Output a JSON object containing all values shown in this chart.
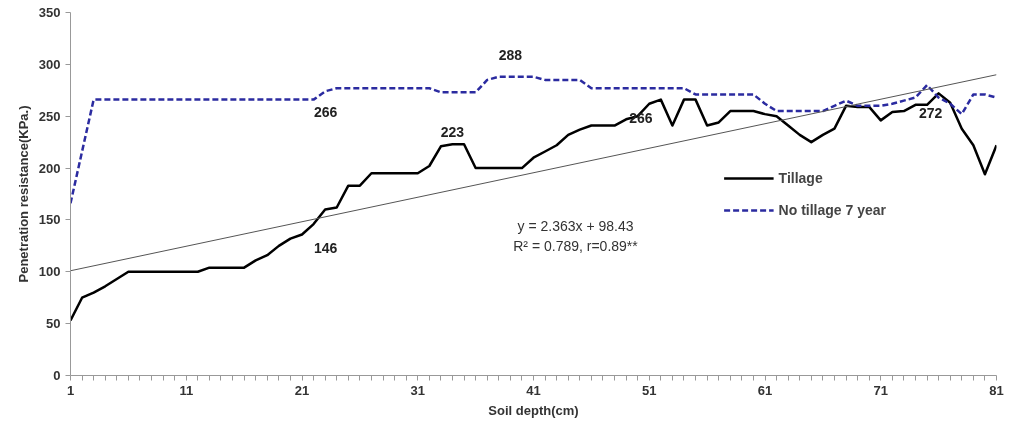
{
  "chart_data": {
    "type": "line",
    "xlabel": "Soil depth(cm)",
    "ylabel": "Penetration resistance(KPa.)",
    "xlim": [
      1,
      81
    ],
    "ylim": [
      0,
      350
    ],
    "xticks": [
      1,
      {
        "value": 2,
        "label": null
      },
      {
        "value": 3,
        "label": null
      },
      {
        "value": 4,
        "label": null
      },
      {
        "value": 5,
        "label": null
      },
      {
        "value": 6,
        "label": null
      },
      {
        "value": 7,
        "label": null
      },
      {
        "value": 8,
        "label": null
      },
      {
        "value": 9,
        "label": null
      },
      {
        "value": 10,
        "label": null
      },
      11,
      {
        "value": 12,
        "label": null
      },
      {
        "value": 13,
        "label": null
      },
      {
        "value": 14,
        "label": null
      },
      {
        "value": 15,
        "label": null
      },
      {
        "value": 16,
        "label": null
      },
      {
        "value": 17,
        "label": null
      },
      {
        "value": 18,
        "label": null
      },
      {
        "value": 19,
        "label": null
      },
      {
        "value": 20,
        "label": null
      },
      21,
      {
        "value": 22,
        "label": null
      },
      {
        "value": 23,
        "label": null
      },
      {
        "value": 24,
        "label": null
      },
      {
        "value": 25,
        "label": null
      },
      {
        "value": 26,
        "label": null
      },
      {
        "value": 27,
        "label": null
      },
      {
        "value": 28,
        "label": null
      },
      {
        "value": 29,
        "label": null
      },
      {
        "value": 30,
        "label": null
      },
      31,
      {
        "value": 32,
        "label": null
      },
      {
        "value": 33,
        "label": null
      },
      {
        "value": 34,
        "label": null
      },
      {
        "value": 35,
        "label": null
      },
      {
        "value": 36,
        "label": null
      },
      {
        "value": 37,
        "label": null
      },
      {
        "value": 38,
        "label": null
      },
      {
        "value": 39,
        "label": null
      },
      {
        "value": 40,
        "label": null
      },
      41,
      {
        "value": 42,
        "label": null
      },
      {
        "value": 43,
        "label": null
      },
      {
        "value": 44,
        "label": null
      },
      {
        "value": 45,
        "label": null
      },
      {
        "value": 46,
        "label": null
      },
      {
        "value": 47,
        "label": null
      },
      {
        "value": 48,
        "label": null
      },
      {
        "value": 49,
        "label": null
      },
      {
        "value": 50,
        "label": null
      },
      51,
      {
        "value": 52,
        "label": null
      },
      {
        "value": 53,
        "label": null
      },
      {
        "value": 54,
        "label": null
      },
      {
        "value": 55,
        "label": null
      },
      {
        "value": 56,
        "label": null
      },
      {
        "value": 57,
        "label": null
      },
      {
        "value": 58,
        "label": null
      },
      {
        "value": 59,
        "label": null
      },
      {
        "value": 60,
        "label": null
      },
      61,
      {
        "value": 62,
        "label": null
      },
      {
        "value": 63,
        "label": null
      },
      {
        "value": 64,
        "label": null
      },
      {
        "value": 65,
        "label": null
      },
      {
        "value": 66,
        "label": null
      },
      {
        "value": 67,
        "label": null
      },
      {
        "value": 68,
        "label": null
      },
      {
        "value": 69,
        "label": null
      },
      {
        "value": 70,
        "label": null
      },
      71,
      {
        "value": 72,
        "label": null
      },
      {
        "value": 73,
        "label": null
      },
      {
        "value": 74,
        "label": null
      },
      {
        "value": 75,
        "label": null
      },
      {
        "value": 76,
        "label": null
      },
      {
        "value": 77,
        "label": null
      },
      {
        "value": 78,
        "label": null
      },
      {
        "value": 79,
        "label": null
      },
      {
        "value": 80,
        "label": null
      },
      81
    ],
    "yticks": [
      0,
      50,
      100,
      150,
      200,
      250,
      300,
      350
    ],
    "x": [
      1,
      2,
      3,
      4,
      5,
      6,
      7,
      8,
      9,
      10,
      11,
      12,
      13,
      14,
      15,
      16,
      17,
      18,
      19,
      20,
      21,
      22,
      23,
      24,
      25,
      26,
      27,
      28,
      29,
      30,
      31,
      32,
      33,
      34,
      35,
      36,
      37,
      38,
      39,
      40,
      41,
      42,
      43,
      44,
      45,
      46,
      47,
      48,
      49,
      50,
      51,
      52,
      53,
      54,
      55,
      56,
      57,
      58,
      59,
      60,
      61,
      62,
      63,
      64,
      65,
      66,
      67,
      68,
      69,
      70,
      71,
      72,
      73,
      74,
      75,
      76,
      77,
      78,
      79,
      80,
      81
    ],
    "grid": false,
    "legend": "right",
    "marker": "none",
    "series": [
      {
        "name": "Tillage",
        "color": "#000000",
        "line_style": "solid",
        "values": [
          53,
          75,
          80,
          86,
          93,
          100,
          100,
          100,
          100,
          100,
          100,
          100,
          104,
          104,
          104,
          104,
          111,
          116,
          125,
          132,
          136,
          146,
          160,
          162,
          183,
          183,
          195,
          195,
          195,
          195,
          195,
          202,
          221,
          223,
          223,
          200,
          200,
          200,
          200,
          200,
          210,
          216,
          222,
          232,
          237,
          241,
          241,
          241,
          247,
          250,
          262,
          266,
          241,
          266,
          266,
          241,
          244,
          255,
          255,
          255,
          252,
          250,
          241,
          232,
          225,
          232,
          238,
          260,
          259,
          259,
          246,
          254,
          255,
          261,
          261,
          272,
          263,
          238,
          222,
          194,
          222
        ]
      },
      {
        "name": "No tillage 7 year",
        "color": "#2b2ba0",
        "line_style": "dashed",
        "values": [
          166,
          216,
          266,
          266,
          266,
          266,
          266,
          266,
          266,
          266,
          266,
          266,
          266,
          266,
          266,
          266,
          266,
          266,
          266,
          266,
          266,
          266,
          274,
          277,
          277,
          277,
          277,
          277,
          277,
          277,
          277,
          277,
          273,
          273,
          273,
          273,
          285,
          288,
          288,
          288,
          288,
          285,
          285,
          285,
          285,
          277,
          277,
          277,
          277,
          277,
          277,
          277,
          277,
          277,
          271,
          271,
          271,
          271,
          271,
          271,
          262,
          255,
          255,
          255,
          255,
          255,
          260,
          265,
          260,
          260,
          260,
          262,
          265,
          268,
          280,
          268,
          262,
          252,
          271,
          271,
          268
        ]
      },
      {
        "type": "line",
        "color": "#555555",
        "line_style": "solid",
        "x": [
          1,
          81
        ],
        "values": [
          101,
          290
        ]
      }
    ],
    "annotations": [
      {
        "text": "266",
        "x": 22,
        "y": 266
      },
      {
        "text": "288",
        "x": 39,
        "y": 288
      },
      {
        "text": "223",
        "x": 34,
        "y": 223
      },
      {
        "text": "266",
        "x": 52,
        "y": 266
      },
      {
        "text": "146",
        "x": 22,
        "y": 146
      },
      {
        "text": "272",
        "x": 76,
        "y": 272
      },
      "y = 2.363x + 98.43",
      "R² = 0.789, r=0.89**"
    ]
  }
}
